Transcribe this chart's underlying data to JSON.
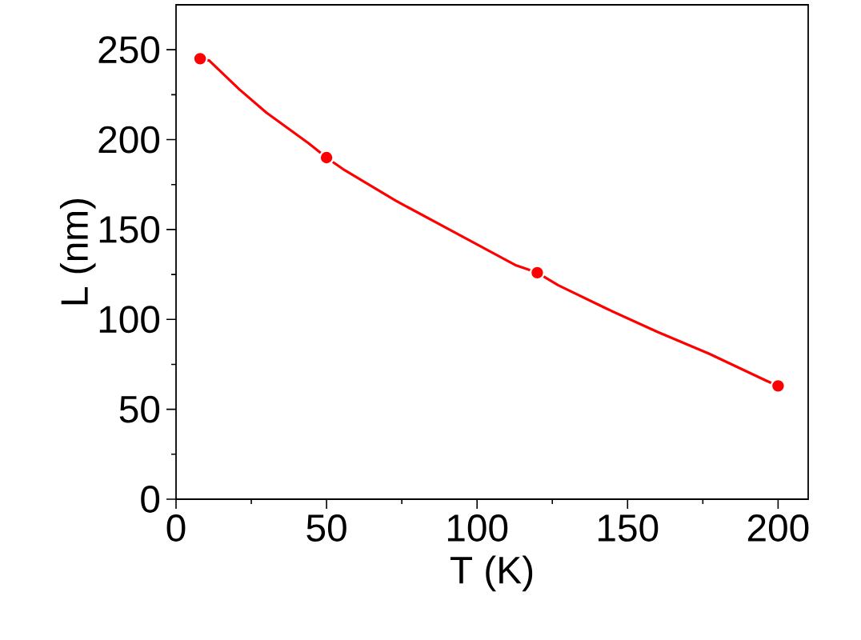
{
  "chart_data": {
    "type": "scatter",
    "xlabel": "T (K)",
    "ylabel": "L (nm)",
    "xlim": [
      0,
      210
    ],
    "ylim": [
      0,
      275
    ],
    "xticks": [
      0,
      50,
      100,
      150,
      200
    ],
    "yticks": [
      0,
      50,
      100,
      150,
      200,
      250
    ],
    "grid": false,
    "series": [
      {
        "type": "line",
        "color": "#ff0000",
        "line_style": "solid",
        "marker": "none",
        "x": [
          8,
          11,
          21,
          30,
          44,
          50,
          56,
          73,
          93,
          113,
          120,
          127,
          143,
          160,
          177,
          196,
          200
        ],
        "values": [
          245,
          244,
          228,
          215,
          198,
          190,
          183,
          166,
          148,
          130,
          126,
          119,
          106,
          93,
          81,
          66,
          63
        ]
      },
      {
        "color": "#ff0000",
        "marker": "circle",
        "x": [
          8,
          50,
          120,
          200
        ],
        "values": [
          245,
          190,
          126,
          63
        ]
      }
    ]
  }
}
